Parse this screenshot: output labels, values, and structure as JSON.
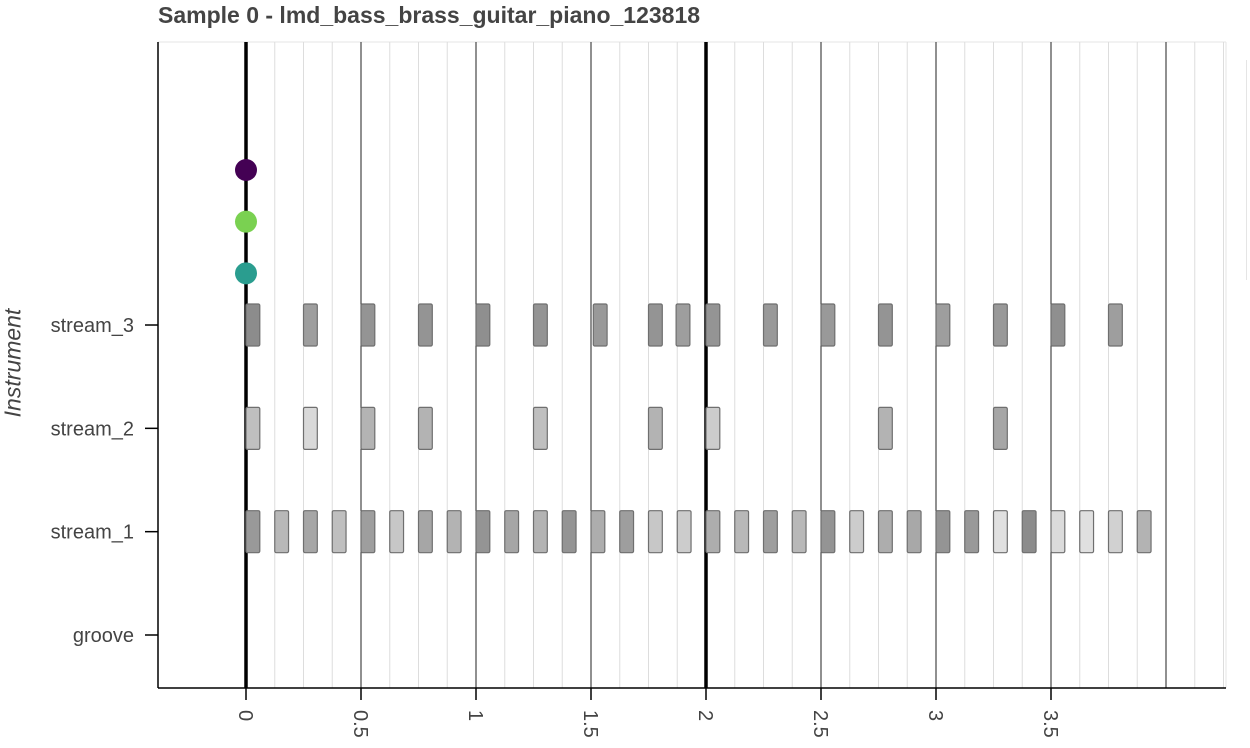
{
  "title": "Sample 0 - lmd_bass_brass_guitar_piano_123818",
  "chart_data": {
    "type": "scatter",
    "title": "Sample 0 - lmd_bass_brass_guitar_piano_123818",
    "xlabel": "",
    "ylabel": "Instrument",
    "categories": [
      "groove",
      "stream_1",
      "stream_2",
      "stream_3"
    ],
    "x_tick_labels": [
      "0",
      "0.5",
      "1",
      "1.5",
      "2",
      "2.5",
      "3",
      "3.5"
    ],
    "xlim": [
      -0.385,
      4.264
    ],
    "bar_beats": [
      0,
      2
    ],
    "minor_grid_step": 0.125,
    "note_width": 0.06,
    "series": [
      {
        "instrument": "stream_3",
        "x": [
          0,
          0.25,
          0.5,
          0.75,
          1.0,
          1.25,
          1.51,
          1.75,
          1.87,
          2.0,
          2.25,
          2.5,
          2.75,
          3.0,
          3.25,
          3.5,
          3.75
        ],
        "shade": [
          0.55,
          0.62,
          0.58,
          0.58,
          0.56,
          0.58,
          0.6,
          0.58,
          0.62,
          0.58,
          0.6,
          0.6,
          0.58,
          0.62,
          0.6,
          0.56,
          0.62
        ]
      },
      {
        "instrument": "stream_2",
        "x": [
          0,
          0.25,
          0.5,
          0.75,
          1.25,
          1.75,
          2.0,
          2.75,
          3.25
        ],
        "shade": [
          0.75,
          0.85,
          0.7,
          0.7,
          0.75,
          0.7,
          0.8,
          0.7,
          0.65
        ]
      },
      {
        "instrument": "stream_1",
        "x": [
          0,
          0.125,
          0.25,
          0.375,
          0.5,
          0.625,
          0.75,
          0.875,
          1.0,
          1.125,
          1.25,
          1.375,
          1.5,
          1.625,
          1.75,
          1.875,
          2.0,
          2.125,
          2.25,
          2.375,
          2.5,
          2.625,
          2.75,
          2.875,
          3.0,
          3.125,
          3.25,
          3.375,
          3.5,
          3.625,
          3.75,
          3.875
        ],
        "shade": [
          0.6,
          0.72,
          0.65,
          0.75,
          0.62,
          0.78,
          0.65,
          0.7,
          0.58,
          0.65,
          0.7,
          0.58,
          0.68,
          0.62,
          0.78,
          0.8,
          0.68,
          0.72,
          0.62,
          0.72,
          0.58,
          0.8,
          0.68,
          0.66,
          0.58,
          0.6,
          0.88,
          0.55,
          0.86,
          0.88,
          0.82,
          0.7
        ]
      }
    ],
    "markers": [
      {
        "x": 0,
        "level": 4.5,
        "color": "#440154"
      },
      {
        "x": 0,
        "level": 4.0,
        "color": "#7ad151"
      },
      {
        "x": 0,
        "level": 3.5,
        "color": "#2a9d8f"
      }
    ]
  }
}
